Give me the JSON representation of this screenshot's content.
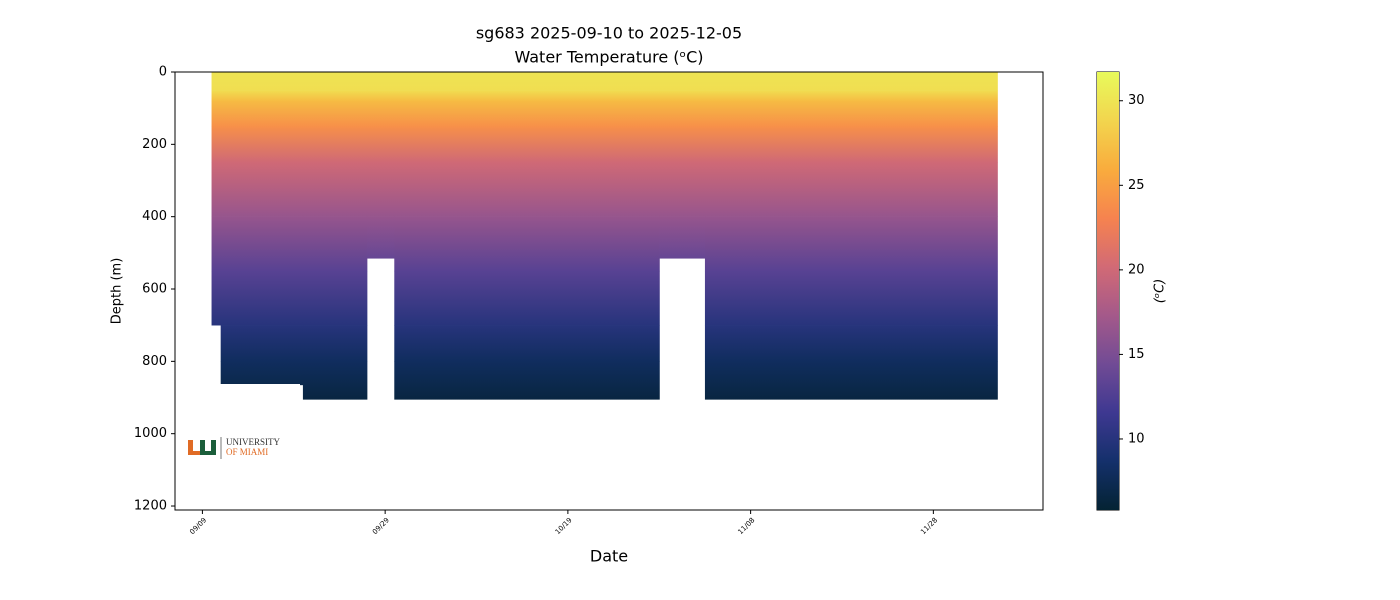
{
  "chart_data": {
    "type": "section",
    "title": "sg683 2025-09-10 to 2025-12-05",
    "subtitle": "Water Temperature (ᵒC)",
    "x_label": "Date",
    "y_label": "Depth (m)",
    "xlim": [
      "09/06",
      "12/10"
    ],
    "xticks": [
      "09/09",
      "09/29",
      "10/19",
      "11/08",
      "11/28"
    ],
    "ylim": [
      1211,
      0
    ],
    "yticks": [
      0,
      200,
      400,
      600,
      800,
      1000,
      1200
    ],
    "segments": [
      {
        "start": "09/10",
        "end": "09/11",
        "max_depth": 700
      },
      {
        "start": "09/11",
        "end": "09/20",
        "max_depth": 865
      },
      {
        "start": "09/20",
        "end": "09/27",
        "max_depth": 905
      },
      {
        "start": "09/27",
        "end": "09/30",
        "max_depth": 515
      },
      {
        "start": "09/30",
        "end": "10/29",
        "max_depth": 905
      },
      {
        "start": "10/29",
        "end": "11/03",
        "max_depth": 515
      },
      {
        "start": "11/03",
        "end": "12/05",
        "max_depth": 905
      }
    ],
    "profile": {
      "depth": [
        0,
        50,
        80,
        150,
        250,
        400,
        550,
        700,
        800,
        905
      ],
      "temperature": [
        30,
        29.5,
        27,
        24,
        20,
        16.5,
        13,
        10,
        8,
        6.5
      ]
    },
    "colormap": [
      "#042333",
      "#14306b",
      "#3e3891",
      "#714b95",
      "#a4598a",
      "#d26a75",
      "#f6834f",
      "#f9ac3d",
      "#f2d54e",
      "#e8fa5b"
    ],
    "colorbar_label": "(ᵒC)",
    "colorbar_lim": [
      5.8,
      31.7
    ],
    "colorbar_ticks": [
      10,
      15,
      20,
      25,
      30
    ],
    "logo_text": [
      "UNIVERSITY",
      "OF MIAMI"
    ]
  }
}
